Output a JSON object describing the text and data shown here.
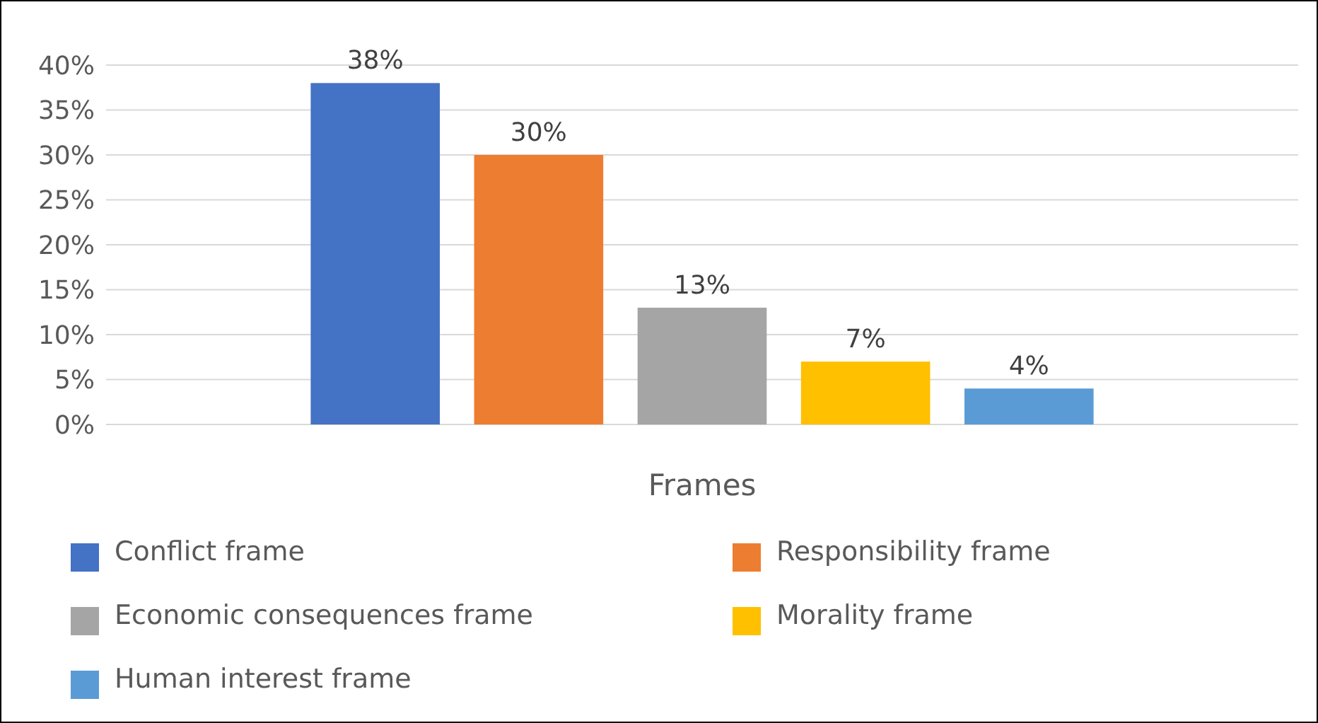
{
  "chart_data": {
    "type": "bar",
    "categories": [
      "Frames"
    ],
    "series": [
      {
        "name": "Conflict frame",
        "color": "#4472c4",
        "values": [
          38
        ],
        "value_labels": [
          "38%"
        ]
      },
      {
        "name": "Responsibility frame",
        "color": "#ed7d31",
        "values": [
          30
        ],
        "value_labels": [
          "30%"
        ]
      },
      {
        "name": "Economic consequences frame",
        "color": "#a5a5a5",
        "values": [
          13
        ],
        "value_labels": [
          "13%"
        ]
      },
      {
        "name": "Morality frame",
        "color": "#ffc000",
        "values": [
          7
        ],
        "value_labels": [
          "7%"
        ]
      },
      {
        "name": "Human interest frame",
        "color": "#5b9bd5",
        "values": [
          4
        ],
        "value_labels": [
          "4%"
        ]
      }
    ],
    "ylim": [
      0,
      40
    ],
    "yticks": [
      {
        "value": 0,
        "label": "0%"
      },
      {
        "value": 5,
        "label": "5%"
      },
      {
        "value": 10,
        "label": "10%"
      },
      {
        "value": 15,
        "label": "15%"
      },
      {
        "value": 20,
        "label": "20%"
      },
      {
        "value": 25,
        "label": "25%"
      },
      {
        "value": 30,
        "label": "30%"
      },
      {
        "value": 35,
        "label": "35%"
      },
      {
        "value": 40,
        "label": "40%"
      }
    ],
    "grid": "y",
    "legend": "bottom"
  }
}
